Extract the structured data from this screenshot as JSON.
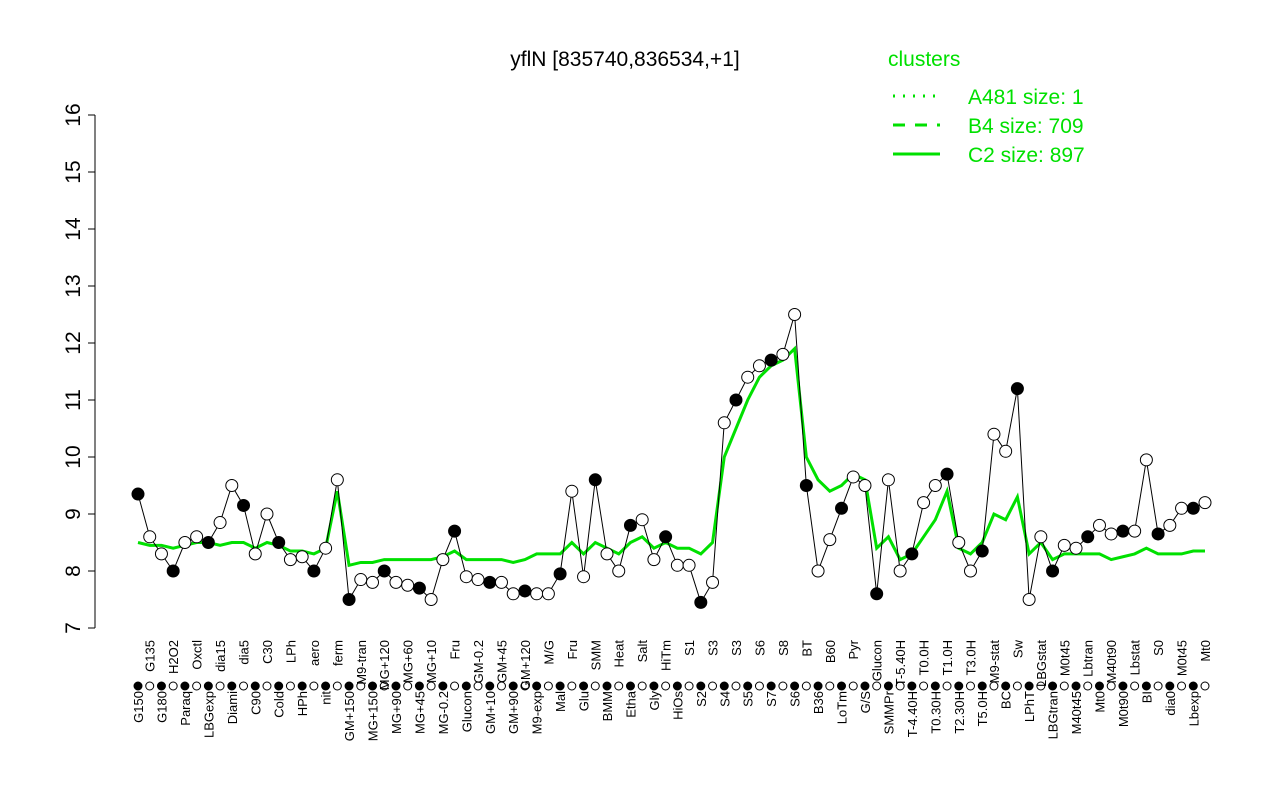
{
  "chart_data": {
    "type": "line",
    "title": "yflN [835740,836534,+1]",
    "xlabel": "",
    "ylabel": "",
    "ylim": [
      7,
      16
    ],
    "yticks": [
      7,
      8,
      9,
      10,
      11,
      12,
      13,
      14,
      15,
      16
    ],
    "grid": false,
    "legend": {
      "title": "clusters",
      "placement": "top-right",
      "color": "#00e000",
      "entries": [
        {
          "label": "A481 size: 1",
          "style": "dotted"
        },
        {
          "label": "B4 size: 709",
          "style": "dashed"
        },
        {
          "label": "C2 size: 897",
          "style": "solid"
        }
      ]
    },
    "categories": [
      "G150",
      "G135",
      "G180",
      "H2O2",
      "Paraq",
      "Oxctl",
      "LBGexp",
      "dia15",
      "Diami",
      "dia5",
      "C90",
      "C30",
      "Cold",
      "LPh",
      "HPh",
      "aero",
      "nit",
      "ferm",
      "GM+150",
      "M9-tran",
      "MG+150",
      "MG+120",
      "MG+90",
      "MG+60",
      "MG+45",
      "MG+10",
      "MG-0.2",
      "Fru",
      "Glucon",
      "GM-0.2",
      "GM+10",
      "GM+45",
      "GM+90",
      "GM+120",
      "M9-exp",
      "M/G",
      "Mal",
      "Fru",
      "Glu",
      "SMM",
      "BMM",
      "Heat",
      "Etha",
      "Salt",
      "Gly",
      "HiTm",
      "HiOs",
      "S1",
      "S2",
      "S3",
      "S4",
      "S3",
      "S5",
      "S6",
      "S7",
      "S8",
      "S6",
      "BT",
      "B36",
      "B60",
      "LoTm",
      "Pyr",
      "G/S",
      "Glucon",
      "SMMPr",
      "T-5.40H",
      "T-4.40H",
      "T0.0H",
      "T0.30H",
      "T1.0H",
      "T2.30H",
      "T3.0H",
      "T5.0H",
      "M9-stat",
      "BC",
      "Sw",
      "LPhT",
      "LBGstat",
      "LBGtran",
      "M0t45",
      "M40t45",
      "Lbtran",
      "Mt0",
      "M40t90",
      "M0t90",
      "Lbstat",
      "BI",
      "S0",
      "dia0",
      "M0t45",
      "Lbexp",
      "Mt0"
    ],
    "series": [
      {
        "name": "expression",
        "color": "#000000",
        "values": [
          9.35,
          8.6,
          8.3,
          8.0,
          8.5,
          8.6,
          8.5,
          8.85,
          9.5,
          9.15,
          8.3,
          9.0,
          8.5,
          8.2,
          8.25,
          8.0,
          8.4,
          9.6,
          7.5,
          7.85,
          7.8,
          8.0,
          7.8,
          7.75,
          7.7,
          7.5,
          8.2,
          8.7,
          7.9,
          7.85,
          7.8,
          7.8,
          7.6,
          7.65,
          7.6,
          7.6,
          7.95,
          9.4,
          7.9,
          9.6,
          8.3,
          8.0,
          8.8,
          8.9,
          8.2,
          8.6,
          8.1,
          8.1,
          7.45,
          7.8,
          10.6,
          11.0,
          11.4,
          11.6,
          11.7,
          11.8,
          12.5,
          9.5,
          8.0,
          8.55,
          9.1,
          9.65,
          9.5,
          7.6,
          9.6,
          8.0,
          8.3,
          9.2,
          9.5,
          9.7,
          8.5,
          8.0,
          8.35,
          10.4,
          10.1,
          11.2,
          7.5,
          8.6,
          8.0,
          8.45,
          8.4,
          8.6,
          8.8,
          8.65,
          8.7,
          8.7,
          9.95,
          8.65,
          8.8,
          9.1,
          9.1,
          9.2
        ]
      },
      {
        "name": "C2 size: 897",
        "color": "#00e000",
        "values": [
          8.5,
          8.45,
          8.45,
          8.4,
          8.45,
          8.5,
          8.5,
          8.45,
          8.5,
          8.5,
          8.4,
          8.5,
          8.45,
          8.35,
          8.35,
          8.3,
          8.4,
          9.4,
          8.1,
          8.15,
          8.15,
          8.2,
          8.2,
          8.2,
          8.2,
          8.2,
          8.25,
          8.35,
          8.2,
          8.2,
          8.2,
          8.2,
          8.15,
          8.2,
          8.3,
          8.3,
          8.3,
          8.5,
          8.3,
          8.5,
          8.4,
          8.3,
          8.5,
          8.6,
          8.4,
          8.5,
          8.4,
          8.4,
          8.3,
          8.5,
          10.0,
          10.5,
          11.0,
          11.4,
          11.6,
          11.7,
          11.9,
          10.0,
          9.6,
          9.4,
          9.5,
          9.7,
          9.6,
          8.4,
          8.6,
          8.2,
          8.3,
          8.6,
          8.9,
          9.4,
          8.4,
          8.3,
          8.5,
          9.0,
          8.9,
          9.3,
          8.3,
          8.5,
          8.2,
          8.3,
          8.3,
          8.3,
          8.3,
          8.2,
          8.25,
          8.3,
          8.4,
          8.3,
          8.3,
          8.3,
          8.35,
          8.35
        ]
      }
    ]
  }
}
